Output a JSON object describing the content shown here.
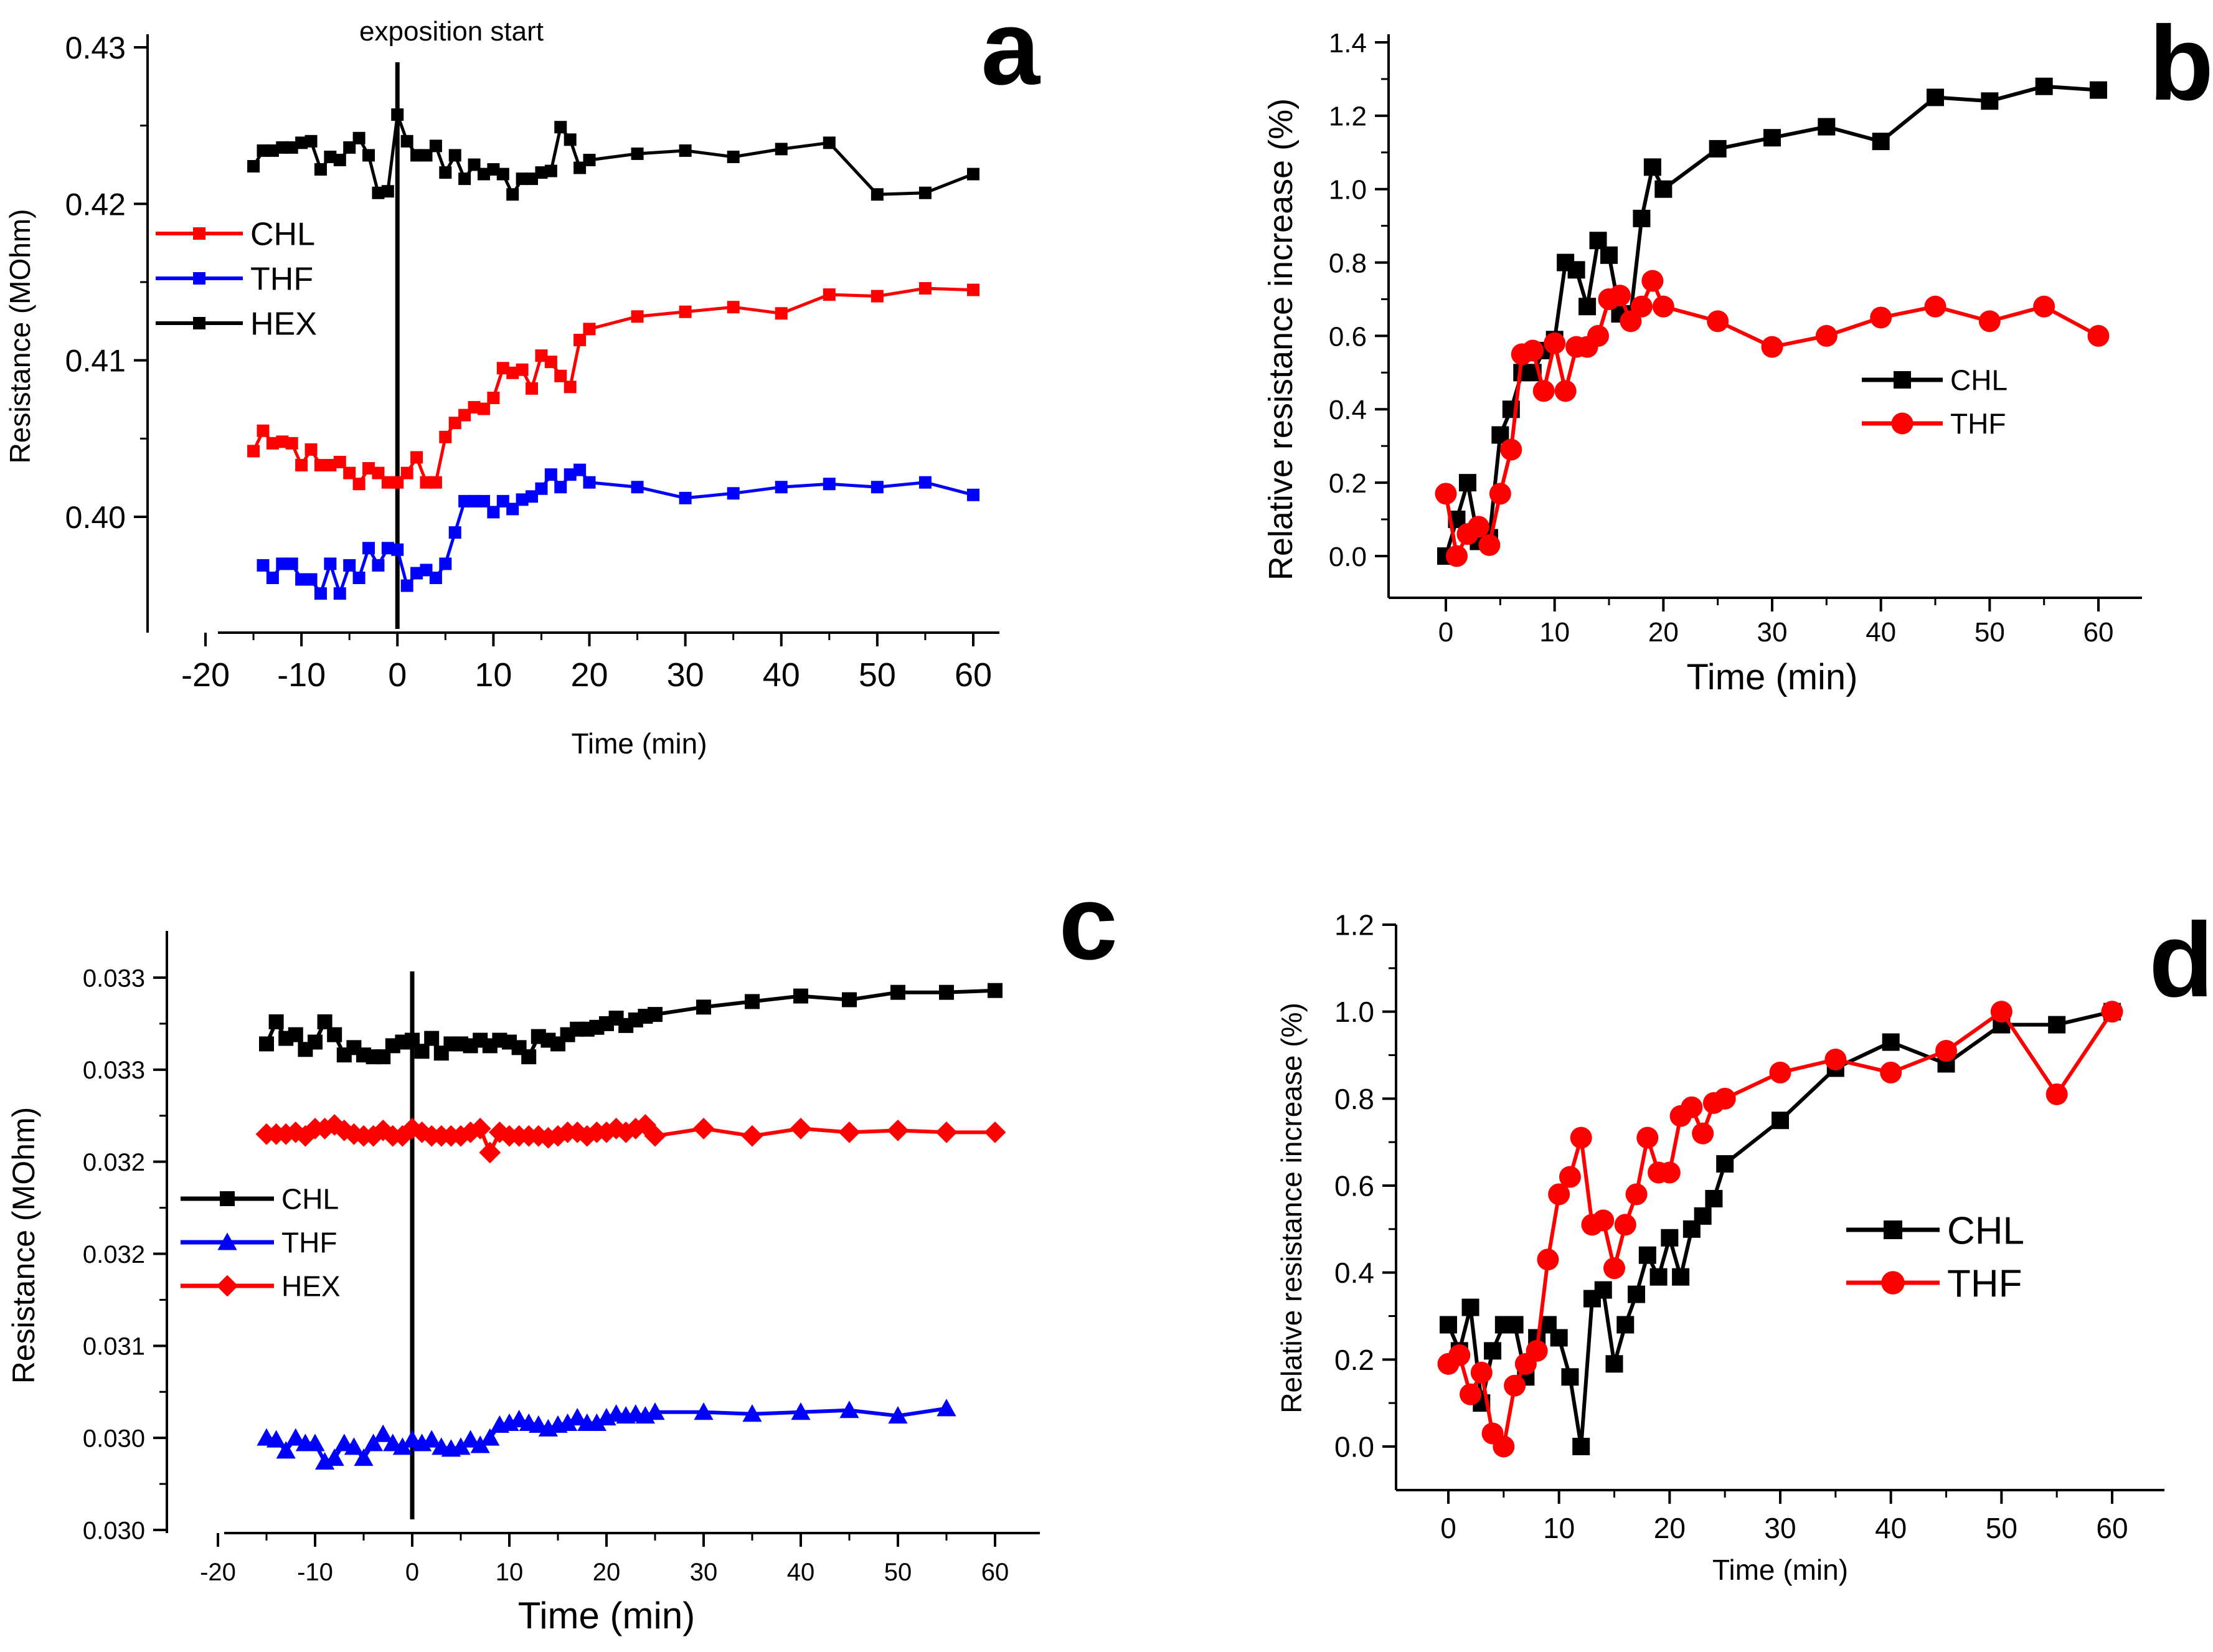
{
  "figure_title": "",
  "chart_data": [
    {
      "panel": "a",
      "type": "line",
      "title": "",
      "xlabel": "Time (min)",
      "ylabel": "Resistance (MOhm)",
      "xlim": [
        -20,
        65
      ],
      "ylim": [
        0.393,
        0.43
      ],
      "xticks": [
        -20,
        -10,
        0,
        10,
        20,
        30,
        40,
        50,
        60
      ],
      "xtick_labels": [
        "-20",
        "-10",
        "0",
        "10",
        "20",
        "30",
        "40",
        "50",
        "60"
      ],
      "yticks": [
        0.4,
        0.41,
        0.42,
        0.43
      ],
      "ytick_labels": [
        "0.40",
        "0.41",
        "0.42",
        "0.43"
      ],
      "annotation": "exposition start",
      "vline_x": 0,
      "marker_legend": "top-left",
      "legend": [
        "CHL",
        "THF",
        "HEX"
      ],
      "series": [
        {
          "name": "CHL",
          "color": "#ff0000",
          "marker": "square",
          "x": [
            -15,
            -14,
            -13,
            -12,
            -11,
            -10,
            -9,
            -8,
            -7,
            -6,
            -5,
            -4,
            -3,
            -2,
            -1,
            0,
            1,
            2,
            3,
            4,
            5,
            6,
            7,
            8,
            9,
            10,
            11,
            12,
            13,
            14,
            15,
            16,
            17,
            18,
            19,
            20,
            25,
            30,
            35,
            40,
            45,
            50,
            55,
            60
          ],
          "y": [
            0.4042,
            0.4055,
            0.4047,
            0.4048,
            0.4047,
            0.4033,
            0.4043,
            0.4033,
            0.4033,
            0.4035,
            0.4028,
            0.4021,
            0.4031,
            0.4028,
            0.4022,
            0.4022,
            0.4028,
            0.4038,
            0.4022,
            0.4022,
            0.4051,
            0.406,
            0.4065,
            0.407,
            0.4069,
            0.4076,
            0.4095,
            0.4092,
            0.4094,
            0.4082,
            0.4103,
            0.4099,
            0.409,
            0.4083,
            0.4113,
            0.412,
            0.4128,
            0.4131,
            0.4134,
            0.413,
            0.4142,
            0.4141,
            0.4146,
            0.4145
          ]
        },
        {
          "name": "THF",
          "color": "#0000ff",
          "marker": "square",
          "x": [
            -14,
            -13,
            -12,
            -11,
            -10,
            -9,
            -8,
            -7,
            -6,
            -5,
            -4,
            -3,
            -2,
            -1,
            0,
            1,
            2,
            3,
            4,
            5,
            6,
            7,
            8,
            9,
            10,
            11,
            12,
            13,
            14,
            15,
            16,
            17,
            18,
            19,
            20,
            25,
            30,
            35,
            40,
            45,
            50,
            55,
            60
          ],
          "y": [
            0.3969,
            0.3961,
            0.397,
            0.397,
            0.396,
            0.396,
            0.3951,
            0.397,
            0.3951,
            0.3969,
            0.3961,
            0.398,
            0.3969,
            0.398,
            0.3979,
            0.3956,
            0.3964,
            0.3966,
            0.3961,
            0.397,
            0.399,
            0.401,
            0.401,
            0.401,
            0.4003,
            0.401,
            0.4005,
            0.4011,
            0.4013,
            0.4018,
            0.4027,
            0.4019,
            0.4027,
            0.403,
            0.4022,
            0.4019,
            0.4012,
            0.4015,
            0.4019,
            0.4021,
            0.4019,
            0.4022,
            0.4014
          ]
        },
        {
          "name": "HEX",
          "color": "#000000",
          "marker": "square",
          "x": [
            -15,
            -14,
            -13,
            -12,
            -11,
            -10,
            -9,
            -8,
            -7,
            -6,
            -5,
            -4,
            -3,
            -2,
            -1,
            0,
            1,
            2,
            3,
            4,
            5,
            6,
            7,
            8,
            9,
            10,
            11,
            12,
            13,
            14,
            15,
            16,
            17,
            18,
            19,
            20,
            25,
            30,
            35,
            40,
            45,
            50,
            55,
            60
          ],
          "y": [
            0.4224,
            0.4234,
            0.4234,
            0.4236,
            0.4236,
            0.4239,
            0.424,
            0.4222,
            0.423,
            0.4228,
            0.4236,
            0.4242,
            0.4231,
            0.4207,
            0.4208,
            0.4257,
            0.424,
            0.4231,
            0.4231,
            0.4237,
            0.422,
            0.4231,
            0.4216,
            0.4225,
            0.4219,
            0.4222,
            0.4219,
            0.4206,
            0.4216,
            0.4216,
            0.422,
            0.4221,
            0.4249,
            0.4241,
            0.4223,
            0.4228,
            0.4232,
            0.4234,
            0.423,
            0.4235,
            0.4239,
            0.4206,
            0.4207,
            0.4219
          ]
        }
      ]
    },
    {
      "panel": "b",
      "type": "line",
      "title": "",
      "xlabel": "Time (min)",
      "ylabel": "Relative resistance increase (%)",
      "xlim": [
        -5,
        65
      ],
      "ylim": [
        -0.15,
        1.4
      ],
      "xticks": [
        0,
        10,
        20,
        30,
        40,
        50,
        60
      ],
      "xtick_labels": [
        "0",
        "10",
        "20",
        "30",
        "40",
        "50",
        "60"
      ],
      "yticks": [
        0.0,
        0.2,
        0.4,
        0.6,
        0.8,
        1.0,
        1.2,
        1.4
      ],
      "ytick_labels": [
        "0.0",
        "0.2",
        "0.4",
        "0.6",
        "0.8",
        "1.0",
        "1.2",
        "1.4"
      ],
      "legend": [
        "CHL",
        "THF"
      ],
      "legend_position": "center-right",
      "series": [
        {
          "name": "CHL",
          "color": "#000000",
          "marker": "square",
          "x": [
            0,
            1,
            2,
            3,
            4,
            5,
            6,
            7,
            8,
            9,
            10,
            11,
            12,
            13,
            14,
            15,
            16,
            17,
            18,
            19,
            20,
            25,
            30,
            35,
            40,
            45,
            50,
            55,
            60
          ],
          "y": [
            0.0,
            0.1,
            0.2,
            0.04,
            0.05,
            0.33,
            0.4,
            0.5,
            0.5,
            0.56,
            0.59,
            0.8,
            0.78,
            0.68,
            0.86,
            0.82,
            0.66,
            0.66,
            0.92,
            1.06,
            1.0,
            1.11,
            1.14,
            1.17,
            1.13,
            1.25,
            1.24,
            1.28,
            1.27
          ]
        },
        {
          "name": "THF",
          "color": "#ff0000",
          "marker": "circle",
          "x": [
            0,
            1,
            2,
            3,
            4,
            5,
            6,
            7,
            8,
            9,
            10,
            11,
            12,
            13,
            14,
            15,
            16,
            17,
            18,
            19,
            20,
            25,
            30,
            35,
            40,
            45,
            50,
            55,
            60
          ],
          "y": [
            0.17,
            0.0,
            0.06,
            0.08,
            0.03,
            0.17,
            0.29,
            0.55,
            0.56,
            0.45,
            0.58,
            0.45,
            0.57,
            0.57,
            0.6,
            0.7,
            0.71,
            0.64,
            0.68,
            0.75,
            0.68,
            0.64,
            0.57,
            0.6,
            0.65,
            0.68,
            0.64,
            0.68,
            0.6
          ]
        }
      ]
    },
    {
      "panel": "c",
      "type": "line",
      "title": "",
      "xlabel": "Time (min)",
      "ylabel": "Resistance (MOhm)",
      "xlim": [
        -20,
        65
      ],
      "ylim": [
        0.03,
        0.0335
      ],
      "xticks": [
        -20,
        -10,
        0,
        10,
        20,
        30,
        40,
        50,
        60
      ],
      "xtick_labels": [
        "-20",
        "-10",
        "0",
        "10",
        "20",
        "30",
        "40",
        "50",
        "60"
      ],
      "yticks": [
        0.03,
        0.0305,
        0.031,
        0.0315,
        0.032,
        0.0325,
        0.033
      ],
      "ytick_labels": [
        "0.030",
        "0.030",
        "0.031",
        "0.032",
        "0.032",
        "0.033",
        "0.033"
      ],
      "vline_x": 0,
      "legend": [
        "CHL",
        "THF",
        "HEX"
      ],
      "legend_position": "center-left",
      "series": [
        {
          "name": "CHL",
          "color": "#000000",
          "marker": "square",
          "x": [
            -15,
            -14,
            -13,
            -12,
            -11,
            -10,
            -9,
            -8,
            -7,
            -6,
            -5,
            -4,
            -3,
            -2,
            -1,
            0,
            1,
            2,
            3,
            4,
            5,
            6,
            7,
            8,
            9,
            10,
            11,
            12,
            13,
            14,
            15,
            16,
            17,
            18,
            19,
            20,
            21,
            22,
            23,
            24,
            25,
            30,
            35,
            40,
            45,
            50,
            55,
            60
          ],
          "y": [
            0.03264,
            0.03276,
            0.03267,
            0.03269,
            0.03261,
            0.03265,
            0.03276,
            0.03269,
            0.03258,
            0.03262,
            0.03258,
            0.03257,
            0.03257,
            0.03263,
            0.03265,
            0.03266,
            0.0326,
            0.03267,
            0.03259,
            0.03264,
            0.03264,
            0.03263,
            0.03266,
            0.03263,
            0.03266,
            0.03265,
            0.03262,
            0.03257,
            0.03268,
            0.03266,
            0.03264,
            0.03269,
            0.03272,
            0.03272,
            0.03273,
            0.03275,
            0.03278,
            0.03274,
            0.03277,
            0.03279,
            0.0328,
            0.03284,
            0.03287,
            0.0329,
            0.03288,
            0.03292,
            0.03292,
            0.03293
          ]
        },
        {
          "name": "THF",
          "color": "#0000ff",
          "marker": "triangle",
          "x": [
            -15,
            -14,
            -13,
            -12,
            -11,
            -10,
            -9,
            -8,
            -7,
            -6,
            -5,
            -4,
            -3,
            -2,
            -1,
            0,
            1,
            2,
            3,
            4,
            5,
            6,
            7,
            8,
            9,
            10,
            11,
            12,
            13,
            14,
            15,
            16,
            17,
            18,
            19,
            20,
            21,
            22,
            23,
            24,
            25,
            30,
            35,
            40,
            45,
            50,
            55
          ],
          "y": [
            0.0305,
            0.03049,
            0.03043,
            0.0305,
            0.03047,
            0.03047,
            0.03037,
            0.03039,
            0.03047,
            0.03045,
            0.03039,
            0.03047,
            0.03052,
            0.03047,
            0.03045,
            0.03049,
            0.03047,
            0.03049,
            0.03045,
            0.03044,
            0.03045,
            0.03049,
            0.03046,
            0.0305,
            0.03057,
            0.03058,
            0.0306,
            0.03058,
            0.03057,
            0.03055,
            0.03057,
            0.03058,
            0.03061,
            0.03058,
            0.03058,
            0.03061,
            0.03063,
            0.03062,
            0.03063,
            0.03062,
            0.03064,
            0.03064,
            0.03063,
            0.03064,
            0.03065,
            0.03062,
            0.03066
          ]
        },
        {
          "name": "HEX",
          "color": "#ff0000",
          "marker": "diamond",
          "x": [
            -15,
            -14,
            -13,
            -12,
            -11,
            -10,
            -9,
            -8,
            -7,
            -6,
            -5,
            -4,
            -3,
            -2,
            -1,
            0,
            1,
            2,
            3,
            4,
            5,
            6,
            7,
            8,
            9,
            10,
            11,
            12,
            13,
            14,
            15,
            16,
            17,
            18,
            19,
            20,
            21,
            22,
            23,
            24,
            25,
            30,
            35,
            40,
            45,
            50,
            55,
            60
          ],
          "y": [
            0.03215,
            0.03215,
            0.03215,
            0.03216,
            0.03214,
            0.03218,
            0.03218,
            0.0322,
            0.03217,
            0.03215,
            0.03214,
            0.03214,
            0.03217,
            0.03214,
            0.03214,
            0.03218,
            0.03216,
            0.03214,
            0.03214,
            0.03214,
            0.03214,
            0.03216,
            0.03218,
            0.03205,
            0.03216,
            0.03214,
            0.03214,
            0.03214,
            0.03214,
            0.03213,
            0.03214,
            0.03216,
            0.03216,
            0.03214,
            0.03216,
            0.03216,
            0.03218,
            0.03216,
            0.03218,
            0.0322,
            0.03214,
            0.03218,
            0.03214,
            0.03218,
            0.03216,
            0.03217,
            0.03216,
            0.03216
          ]
        }
      ]
    },
    {
      "panel": "d",
      "type": "line",
      "title": "",
      "xlabel": "Time (min)",
      "ylabel": "Relative resistance increase (%)",
      "xlim": [
        -5,
        65
      ],
      "ylim": [
        -0.1,
        1.2
      ],
      "xticks": [
        0,
        10,
        20,
        30,
        40,
        50,
        60
      ],
      "xtick_labels": [
        "0",
        "10",
        "20",
        "30",
        "40",
        "50",
        "60"
      ],
      "yticks": [
        0.0,
        0.2,
        0.4,
        0.6,
        0.8,
        1.0,
        1.2
      ],
      "ytick_labels": [
        "0.0",
        "0.2",
        "0.4",
        "0.6",
        "0.8",
        "1.0",
        "1.2"
      ],
      "legend": [
        "CHL",
        "THF"
      ],
      "legend_position": "center-right",
      "series": [
        {
          "name": "CHL",
          "color": "#000000",
          "marker": "square",
          "x": [
            0,
            1,
            2,
            3,
            4,
            5,
            6,
            7,
            8,
            9,
            10,
            11,
            12,
            13,
            14,
            15,
            16,
            17,
            18,
            19,
            20,
            21,
            22,
            23,
            24,
            25,
            30,
            35,
            40,
            45,
            50,
            55,
            60
          ],
          "y": [
            0.28,
            0.22,
            0.32,
            0.1,
            0.22,
            0.28,
            0.28,
            0.16,
            0.25,
            0.28,
            0.25,
            0.16,
            0.0,
            0.34,
            0.36,
            0.19,
            0.28,
            0.35,
            0.44,
            0.39,
            0.48,
            0.39,
            0.5,
            0.53,
            0.57,
            0.65,
            0.75,
            0.87,
            0.93,
            0.88,
            0.97,
            0.97,
            1.0
          ]
        },
        {
          "name": "THF",
          "color": "#ff0000",
          "marker": "circle",
          "x": [
            0,
            1,
            2,
            3,
            4,
            5,
            6,
            7,
            8,
            9,
            10,
            11,
            12,
            13,
            14,
            15,
            16,
            17,
            18,
            19,
            20,
            21,
            22,
            23,
            24,
            25,
            30,
            35,
            40,
            45,
            50,
            55,
            60
          ],
          "y": [
            0.19,
            0.21,
            0.12,
            0.17,
            0.03,
            0.0,
            0.14,
            0.19,
            0.22,
            0.43,
            0.58,
            0.62,
            0.71,
            0.51,
            0.52,
            0.41,
            0.51,
            0.58,
            0.71,
            0.63,
            0.63,
            0.76,
            0.78,
            0.72,
            0.79,
            0.8,
            0.86,
            0.89,
            0.86,
            0.91,
            1.0,
            0.81,
            1.0
          ]
        }
      ]
    }
  ],
  "panel_letters": [
    "a",
    "b",
    "c",
    "d"
  ]
}
